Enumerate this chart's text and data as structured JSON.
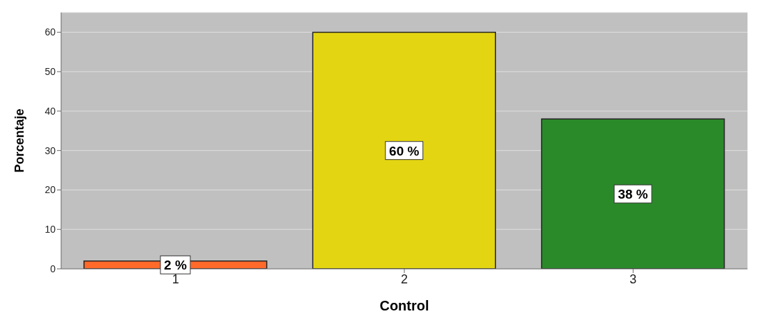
{
  "chart_data": {
    "type": "bar",
    "xlabel": "Control",
    "ylabel": "Porcentaje",
    "categories": [
      "1",
      "2",
      "3"
    ],
    "values": [
      2,
      60,
      38
    ],
    "colors": [
      "#ff6a2a",
      "#e3d511",
      "#2a8a2a"
    ],
    "value_labels": [
      "2 %",
      "60 %",
      "38 %"
    ],
    "ylim": [
      0,
      65
    ],
    "yticks": [
      0,
      10,
      20,
      30,
      40,
      50,
      60
    ],
    "grid": "y"
  }
}
